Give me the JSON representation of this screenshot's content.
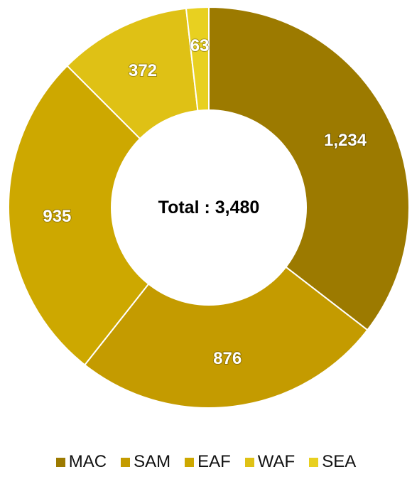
{
  "chart_data": {
    "type": "pie",
    "style": "donut",
    "categories": [
      "MAC",
      "SAM",
      "EAF",
      "WAF",
      "SEA"
    ],
    "values": [
      1234,
      876,
      935,
      372,
      63
    ],
    "labels": [
      "1,234",
      "876",
      "935",
      "372",
      "63"
    ],
    "colors": [
      "#9C7A00",
      "#C49B00",
      "#CDA800",
      "#DFC115",
      "#E8D020"
    ],
    "center_text": "Total : 3,480",
    "legend_position": "bottom"
  }
}
